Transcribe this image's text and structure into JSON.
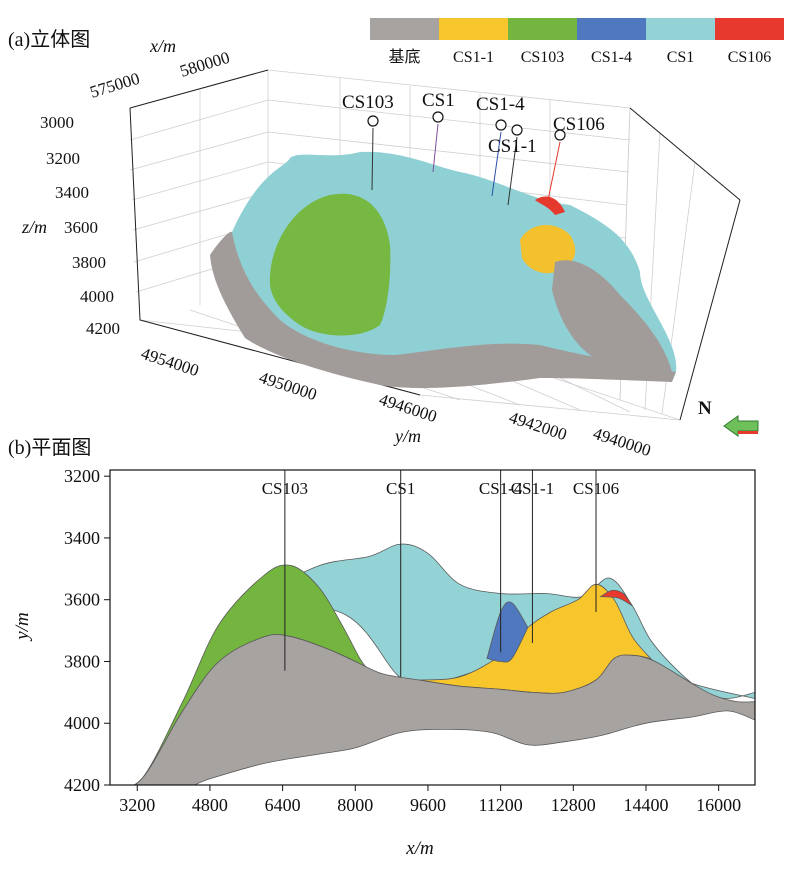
{
  "legend": {
    "items": [
      {
        "label": "基底",
        "color": "#a7a3a1"
      },
      {
        "label": "CS1-1",
        "color": "#f7c52c"
      },
      {
        "label": "CS103",
        "color": "#73b53e"
      },
      {
        "label": "CS1-4",
        "color": "#4f78bf"
      },
      {
        "label": "CS1",
        "color": "#93d3d6"
      },
      {
        "label": "CS106",
        "color": "#e7392e"
      }
    ]
  },
  "panel_a": {
    "label": "(a)立体图",
    "x_axis_label": "x/m",
    "x_ticks": [
      "575000",
      "580000"
    ],
    "y_axis_label": "y/m",
    "y_ticks": [
      "4954000",
      "4950000",
      "4946000",
      "4942000",
      "4940000"
    ],
    "z_axis_label": "z/m",
    "z_ticks": [
      "3000",
      "3200",
      "3400",
      "3600",
      "3800",
      "4000",
      "4200"
    ],
    "wells": [
      "CS103",
      "CS1",
      "CS1-4",
      "CS1-1",
      "CS106"
    ],
    "north_label": "N"
  },
  "chart_data": {
    "type": "area",
    "title": "(b)平面图",
    "xlabel": "x/m",
    "ylabel": "y/m",
    "xlim": [
      2600,
      16800
    ],
    "ylim": [
      4200,
      3180
    ],
    "y_inverted": true,
    "x_ticks": [
      3200,
      4800,
      6400,
      8000,
      9600,
      11200,
      12800,
      14400,
      16000
    ],
    "y_ticks": [
      3200,
      3400,
      3600,
      3800,
      4000,
      4200
    ],
    "wells": [
      {
        "name": "CS103",
        "x": 6450,
        "y_bottom": 3830
      },
      {
        "name": "CS1",
        "x": 9000,
        "y_bottom": 3850
      },
      {
        "name": "CS1-4",
        "x": 11200,
        "y_bottom": 3770
      },
      {
        "name": "CS1-1",
        "x": 11900,
        "y_bottom": 3740
      },
      {
        "name": "CS106",
        "x": 13300,
        "y_bottom": 3640
      }
    ],
    "series": [
      {
        "name": "CS1",
        "color": "#93d3d6",
        "top": [
          [
            5800,
            3590
          ],
          [
            7200,
            3490
          ],
          [
            8300,
            3460
          ],
          [
            9000,
            3420
          ],
          [
            9600,
            3450
          ],
          [
            10300,
            3550
          ],
          [
            11200,
            3580
          ],
          [
            12200,
            3580
          ],
          [
            13000,
            3590
          ],
          [
            13600,
            3530
          ],
          [
            14100,
            3620
          ],
          [
            14500,
            3730
          ],
          [
            15100,
            3830
          ],
          [
            15700,
            3900
          ],
          [
            16200,
            3920
          ],
          [
            16800,
            3900
          ]
        ],
        "bottom": [
          [
            5800,
            3590
          ],
          [
            7800,
            3650
          ],
          [
            8900,
            3840
          ],
          [
            9300,
            3860
          ],
          [
            10000,
            3860
          ],
          [
            11000,
            3820
          ],
          [
            12000,
            3830
          ],
          [
            13000,
            3780
          ],
          [
            14000,
            3760
          ],
          [
            14600,
            3800
          ],
          [
            15400,
            3870
          ],
          [
            16800,
            3920
          ]
        ]
      },
      {
        "name": "CS103",
        "color": "#73b53e",
        "top": [
          [
            2600,
            4220
          ],
          [
            3300,
            4180
          ],
          [
            4200,
            3930
          ],
          [
            5000,
            3680
          ],
          [
            6000,
            3520
          ],
          [
            6600,
            3490
          ],
          [
            7200,
            3560
          ],
          [
            7700,
            3680
          ],
          [
            8100,
            3790
          ],
          [
            8300,
            3830
          ]
        ],
        "bottom": [
          [
            2600,
            4220
          ],
          [
            3300,
            4180
          ],
          [
            4200,
            3960
          ],
          [
            5000,
            3800
          ],
          [
            6000,
            3720
          ],
          [
            6600,
            3720
          ],
          [
            7400,
            3760
          ],
          [
            8000,
            3800
          ],
          [
            8300,
            3830
          ]
        ]
      },
      {
        "name": "CS1-1",
        "color": "#f7c52c",
        "top": [
          [
            9400,
            3860
          ],
          [
            10300,
            3850
          ],
          [
            11200,
            3780
          ],
          [
            11800,
            3690
          ],
          [
            12300,
            3640
          ],
          [
            12900,
            3600
          ],
          [
            13300,
            3550
          ],
          [
            13700,
            3600
          ],
          [
            14100,
            3720
          ],
          [
            14500,
            3790
          ]
        ],
        "bottom": [
          [
            9400,
            3860
          ],
          [
            10300,
            3880
          ],
          [
            11200,
            3890
          ],
          [
            11900,
            3900
          ],
          [
            12600,
            3900
          ],
          [
            13300,
            3860
          ],
          [
            13700,
            3790
          ],
          [
            14100,
            3780
          ],
          [
            14500,
            3790
          ]
        ]
      },
      {
        "name": "CS1-4",
        "color": "#4f78bf",
        "top": [
          [
            10900,
            3790
          ],
          [
            11200,
            3640
          ],
          [
            11450,
            3610
          ],
          [
            11800,
            3690
          ]
        ],
        "bottom": [
          [
            10900,
            3790
          ],
          [
            11200,
            3800
          ],
          [
            11450,
            3790
          ],
          [
            11800,
            3690
          ]
        ]
      },
      {
        "name": "CS106",
        "color": "#e7392e",
        "top": [
          [
            13400,
            3590
          ],
          [
            13650,
            3570
          ],
          [
            13900,
            3580
          ],
          [
            14100,
            3620
          ]
        ],
        "bottom": [
          [
            13400,
            3590
          ],
          [
            13800,
            3595
          ],
          [
            14100,
            3620
          ]
        ]
      },
      {
        "name": "基底",
        "color": "#a7a3a1",
        "top": [
          [
            2600,
            4220
          ],
          [
            3300,
            4180
          ],
          [
            4200,
            3960
          ],
          [
            5000,
            3800
          ],
          [
            6000,
            3720
          ],
          [
            6600,
            3720
          ],
          [
            7400,
            3760
          ],
          [
            8000,
            3800
          ],
          [
            8600,
            3840
          ],
          [
            9400,
            3860
          ],
          [
            10300,
            3880
          ],
          [
            11200,
            3890
          ],
          [
            11900,
            3900
          ],
          [
            12600,
            3900
          ],
          [
            13300,
            3860
          ],
          [
            13700,
            3790
          ],
          [
            14100,
            3780
          ],
          [
            14600,
            3800
          ],
          [
            15400,
            3870
          ],
          [
            15900,
            3910
          ],
          [
            16400,
            3930
          ],
          [
            16800,
            3930
          ]
        ],
        "bottom": [
          [
            2600,
            4220
          ],
          [
            4000,
            4220
          ],
          [
            4800,
            4180
          ],
          [
            6000,
            4130
          ],
          [
            7200,
            4100
          ],
          [
            8000,
            4080
          ],
          [
            9000,
            4030
          ],
          [
            10000,
            4020
          ],
          [
            11000,
            4030
          ],
          [
            11800,
            4070
          ],
          [
            12600,
            4060
          ],
          [
            13400,
            4040
          ],
          [
            14400,
            4000
          ],
          [
            15400,
            3980
          ],
          [
            16200,
            3960
          ],
          [
            16800,
            3990
          ]
        ]
      }
    ]
  }
}
